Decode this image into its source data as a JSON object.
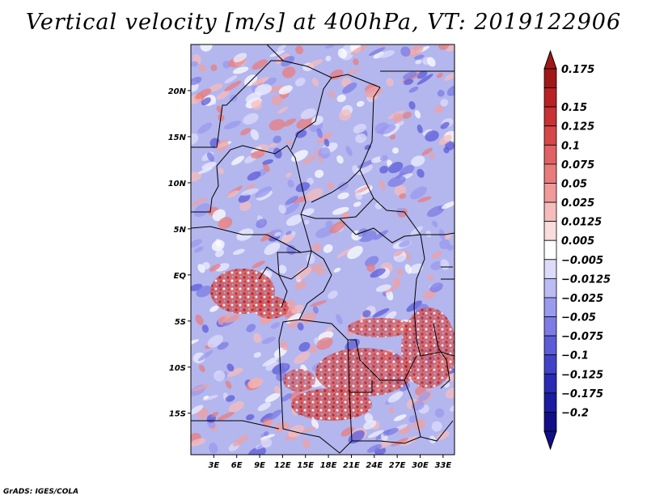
{
  "title": "Vertical velocity [m/s] at 400hPa, VT: 2019122906",
  "credit": "GrADS: IGES/COLA",
  "map": {
    "lat_labels": [
      "20N",
      "15N",
      "10N",
      "5N",
      "EQ",
      "5S",
      "10S",
      "15S"
    ],
    "lon_labels": [
      "3E",
      "6E",
      "9E",
      "12E",
      "15E",
      "18E",
      "21E",
      "24E",
      "27E",
      "30E",
      "33E"
    ],
    "lat_values": [
      20,
      15,
      10,
      5,
      0,
      -5,
      -10,
      -15
    ],
    "lon_values": [
      3,
      6,
      9,
      12,
      15,
      18,
      21,
      24,
      27,
      30,
      33
    ],
    "lon_range": [
      0,
      34.5
    ],
    "lat_range": [
      -19.5,
      25
    ]
  },
  "colorbar": {
    "labels": [
      "0.175",
      "0.15",
      "0.125",
      "0.1",
      "0.075",
      "0.05",
      "0.025",
      "0.0125",
      "0.005",
      "−0.005",
      "−0.0125",
      "−0.025",
      "−0.05",
      "−0.075",
      "−0.1",
      "−0.125",
      "−0.175",
      "−0.2"
    ],
    "colors": [
      "#a01818",
      "#b82222",
      "#c83232",
      "#d64848",
      "#e06262",
      "#e87c7c",
      "#f09a9a",
      "#f6bcbc",
      "#fbdcdc",
      "#ffffff",
      "#dcdcfa",
      "#bcbcf4",
      "#9a9aee",
      "#7c7ce4",
      "#5c5cd8",
      "#4242c8",
      "#2a2ab4",
      "#1c1ca0",
      "#120e88"
    ],
    "top_arrow_color": "#a01818",
    "bottom_arrow_color": "#120e88"
  }
}
